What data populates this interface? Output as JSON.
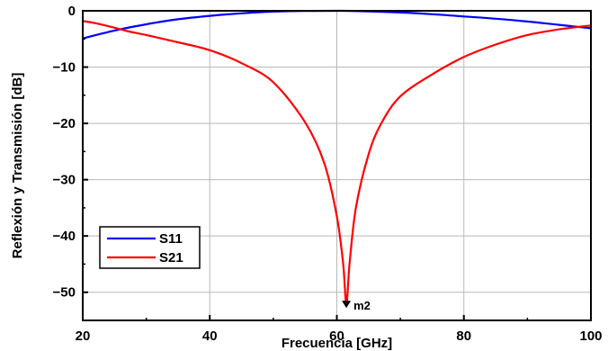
{
  "chart_data": {
    "type": "line",
    "xlabel": "Frecuencia [GHz]",
    "ylabel": "Reflexión y Transmisión [dB]",
    "xlim": [
      20,
      100
    ],
    "ylim": [
      -55,
      0
    ],
    "xticks": [
      20,
      40,
      60,
      80,
      100
    ],
    "yticks": [
      0,
      -10,
      -20,
      -30,
      -40,
      -50
    ],
    "ytick_labels": [
      "0",
      "−10",
      "−20",
      "−30",
      "−40",
      "−50"
    ],
    "grid": true,
    "legend_position": "bottom-left",
    "series": [
      {
        "name": "S11",
        "color": "#0000ff",
        "x": [
          20,
          25,
          30,
          35,
          40,
          45,
          50,
          55,
          60,
          62,
          65,
          70,
          75,
          80,
          85,
          90,
          95,
          100
        ],
        "y": [
          -4.9,
          -3.5,
          -2.4,
          -1.5,
          -0.9,
          -0.45,
          -0.15,
          -0.03,
          0.0,
          -0.02,
          -0.1,
          -0.3,
          -0.6,
          -1.0,
          -1.4,
          -1.9,
          -2.5,
          -3.1
        ]
      },
      {
        "name": "S21",
        "color": "#ff0000",
        "x": [
          20,
          22,
          25,
          27,
          30,
          35,
          40,
          45,
          50,
          55,
          58,
          60,
          61,
          61.5,
          62,
          63,
          65,
          67,
          70,
          75,
          80,
          85,
          90,
          95,
          100
        ],
        "y": [
          -1.8,
          -2.2,
          -3.0,
          -3.6,
          -4.3,
          -5.6,
          -7.0,
          -9.3,
          -12.7,
          -19.8,
          -27.0,
          -36.5,
          -45.0,
          -52.0,
          -45.0,
          -35.0,
          -25.5,
          -20.0,
          -15.2,
          -11.3,
          -8.2,
          -6.0,
          -4.3,
          -3.3,
          -2.6
        ]
      }
    ],
    "annotations": [
      {
        "text": "m2",
        "x": 61.5,
        "y": -52.0
      }
    ]
  }
}
